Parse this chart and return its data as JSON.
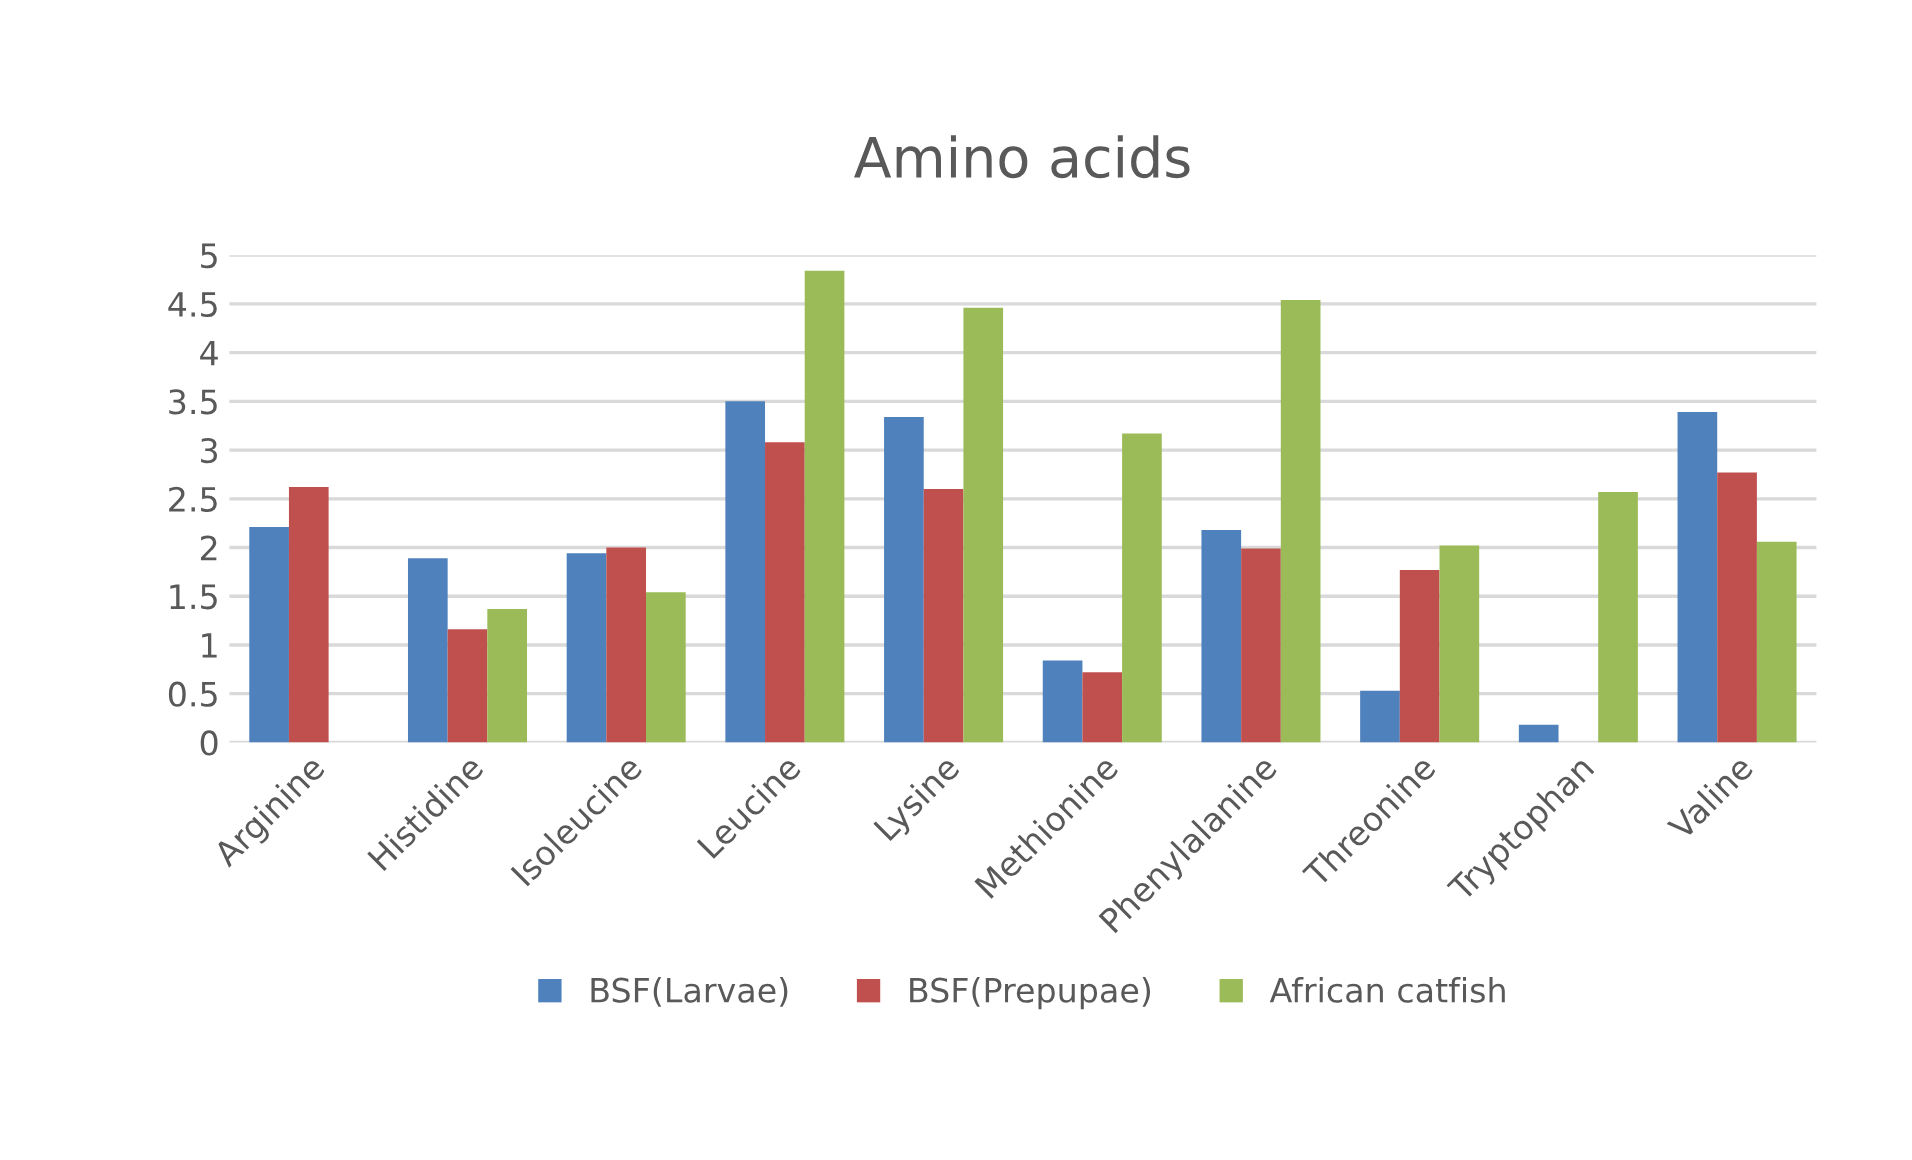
{
  "chart_data": {
    "type": "bar",
    "title": "Amino acids",
    "categories": [
      "Arginine",
      "Histidine",
      "Isoleucine",
      "Leucine",
      "Lysine",
      "Methionine",
      "Phenylalanine",
      "Threonine",
      "Tryptophan",
      "Valine"
    ],
    "series": [
      {
        "name": "BSF(Larvae)",
        "color": "#4f81bd",
        "values": [
          2.21,
          1.89,
          1.94,
          3.5,
          3.34,
          0.84,
          2.18,
          0.53,
          0.18,
          3.39
        ]
      },
      {
        "name": "BSF(Prepupae)",
        "color": "#c0504d",
        "values": [
          2.62,
          1.16,
          2.0,
          3.08,
          2.6,
          0.72,
          1.99,
          1.77,
          0.0,
          2.77
        ]
      },
      {
        "name": "African catfish",
        "color": "#9bbb59",
        "values": [
          null,
          1.37,
          1.54,
          4.84,
          4.46,
          3.17,
          4.54,
          2.02,
          2.57,
          2.06
        ]
      }
    ],
    "ylim": [
      0,
      5
    ],
    "yticks": [
      0,
      0.5,
      1,
      1.5,
      2,
      2.5,
      3,
      3.5,
      4,
      4.5,
      5
    ],
    "grid": "y",
    "legend": "bottom"
  }
}
